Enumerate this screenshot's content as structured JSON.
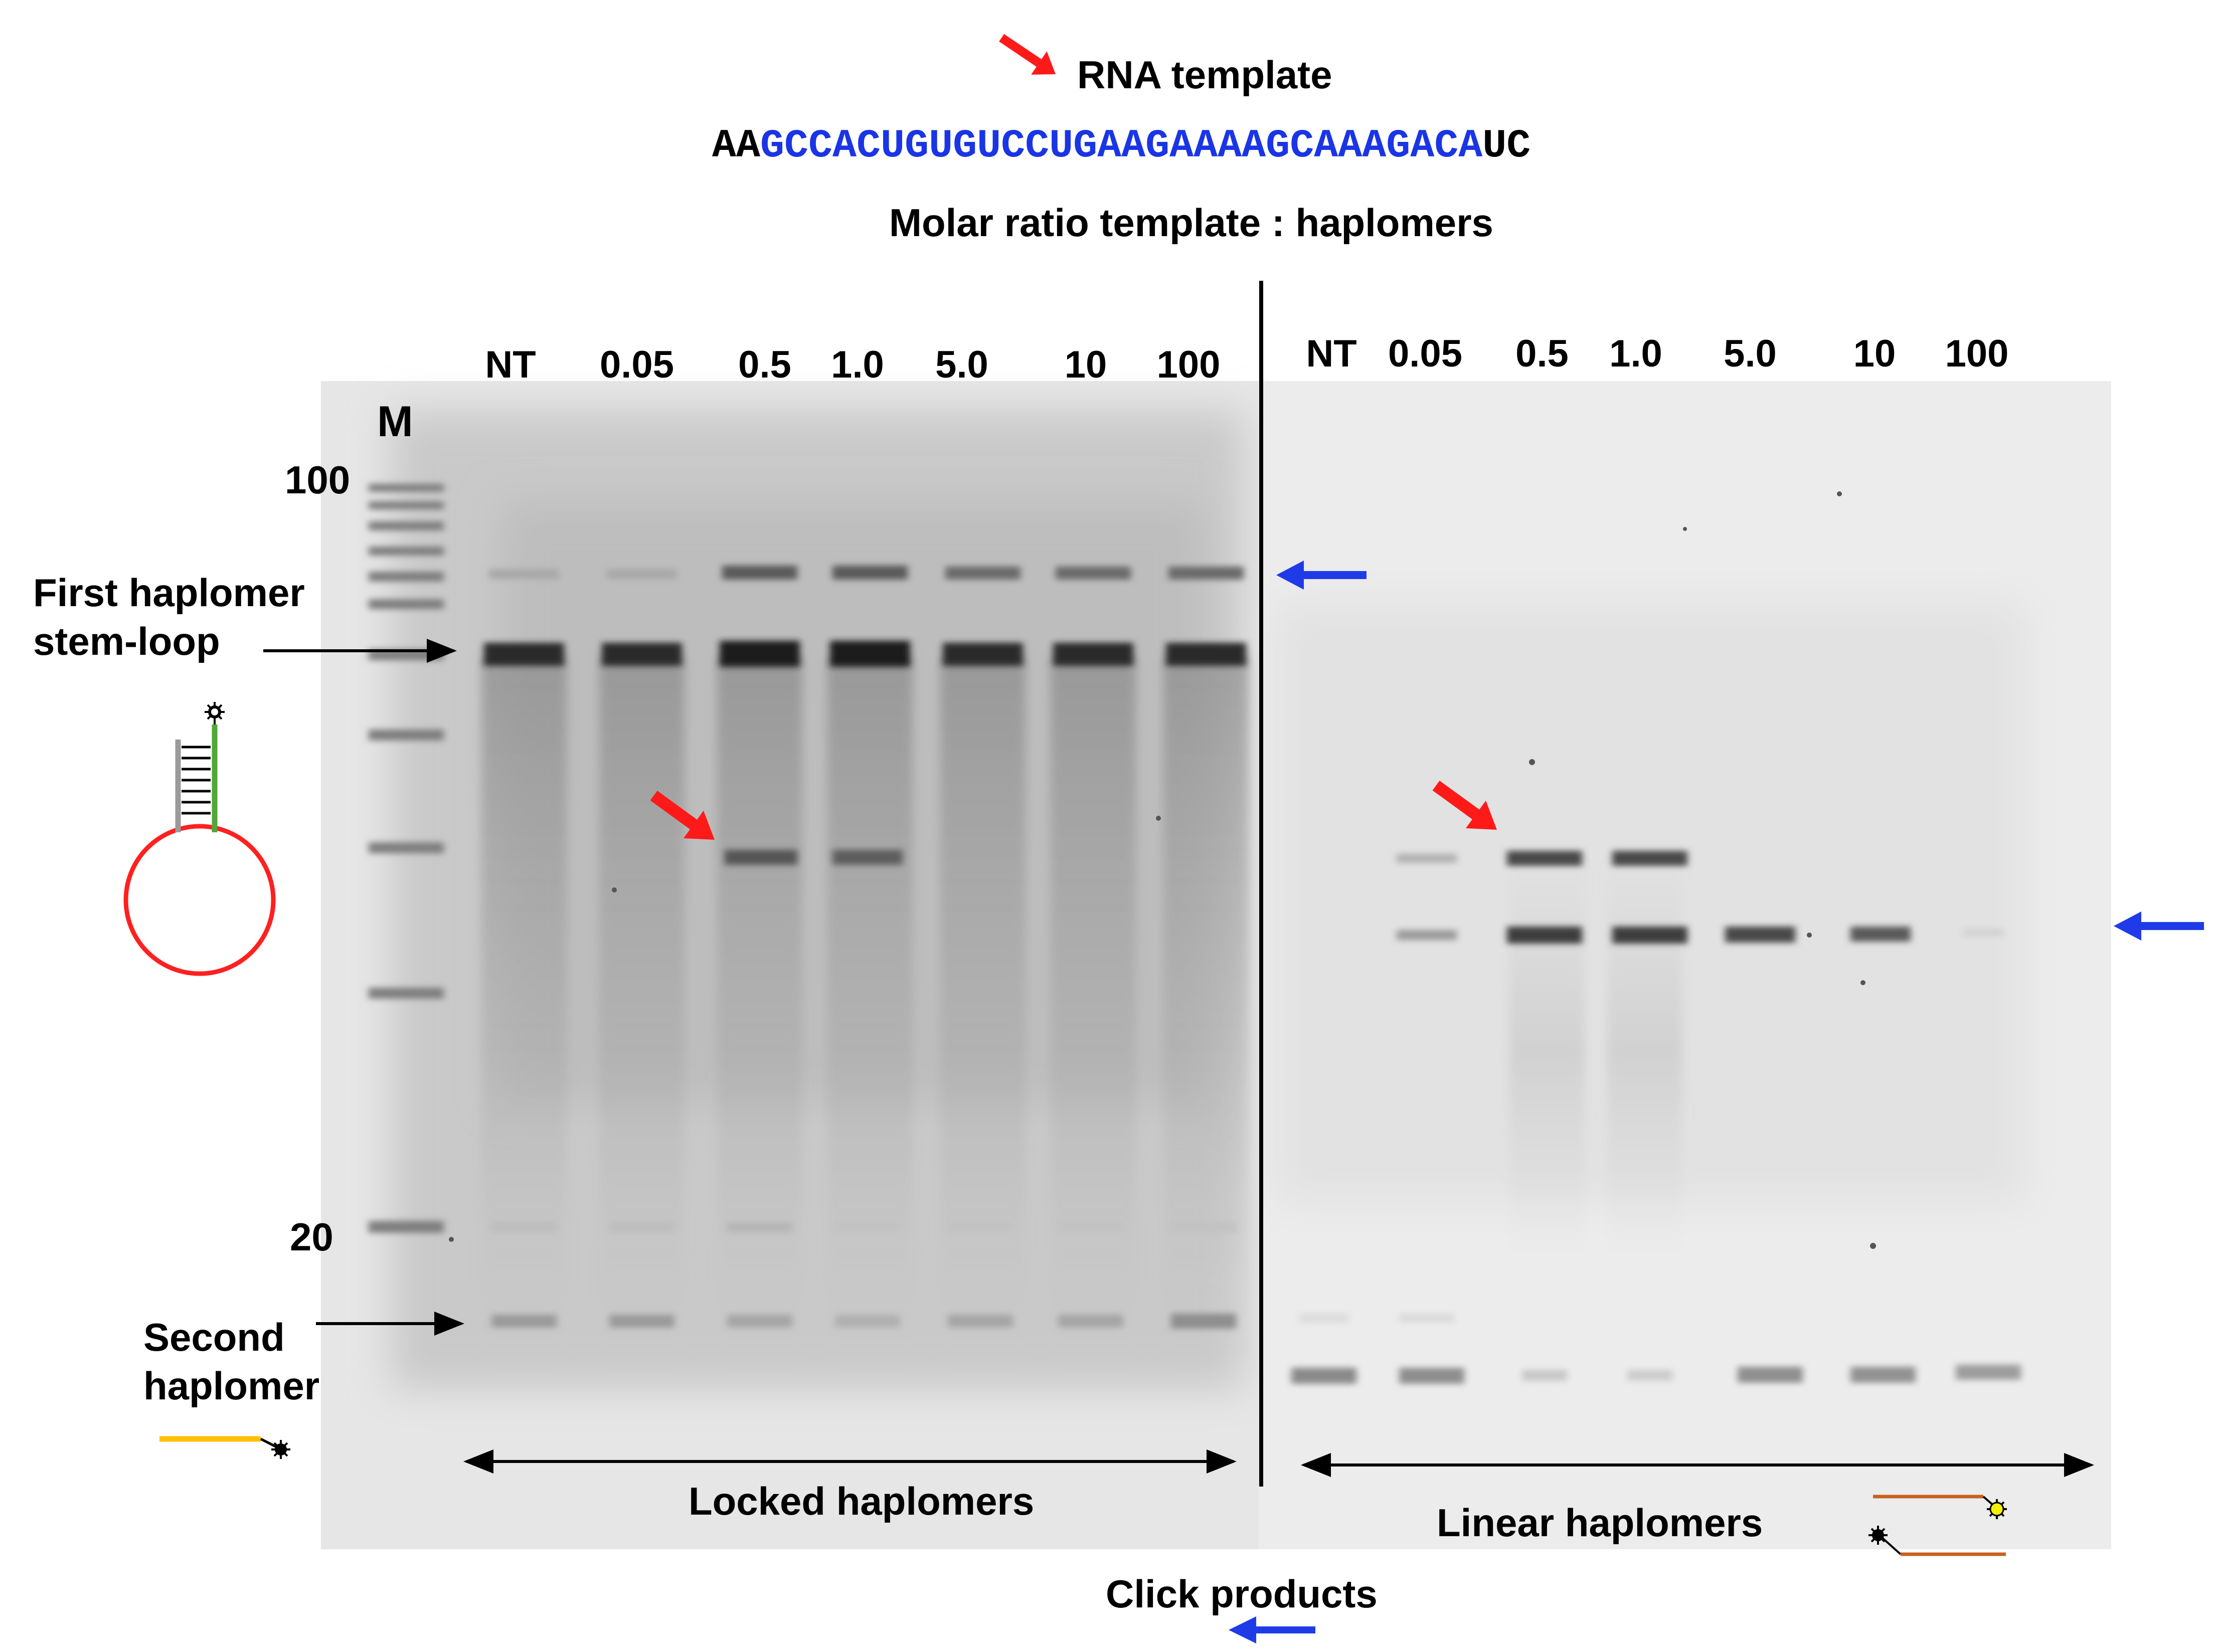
{
  "header": {
    "rna_template_label": "RNA template",
    "sequence_prefix": "AA",
    "sequence_core": "GCCACUGUGUCCUGAAGAAAAGCAAAGACA",
    "sequence_suffix": "UC",
    "ratio_title": "Molar ratio template : haplomers"
  },
  "left_gel": {
    "marker_label": "M",
    "marker_sizes": [
      "100",
      "20"
    ],
    "lanes": [
      "NT",
      "0.05",
      "0.5",
      "1.0",
      "5.0",
      "10",
      "100"
    ],
    "panel_label": "Locked haplomers"
  },
  "right_gel": {
    "lanes": [
      "NT",
      "0.05",
      "0.5",
      "1.0",
      "5.0",
      "10",
      "100"
    ],
    "panel_label": "Linear haplomers"
  },
  "annotations": {
    "first_haplomer_line1": "First haplomer",
    "first_haplomer_line2": "stem-loop",
    "second_haplomer_line1": "Second",
    "second_haplomer_line2": "haplomer",
    "click_products": "Click products"
  },
  "colors": {
    "product_arrow": "#ff1a1a",
    "click_arrow": "#1f3be8",
    "sequence_core": "#1a35e6",
    "stem_loop_ring": "#ff2020",
    "stem_green": "#4fa83a",
    "second_haplomer_line": "#ffc000",
    "linear_haplomer_line": "#c8621e",
    "fluorophore_yellow": "#f2f200"
  }
}
